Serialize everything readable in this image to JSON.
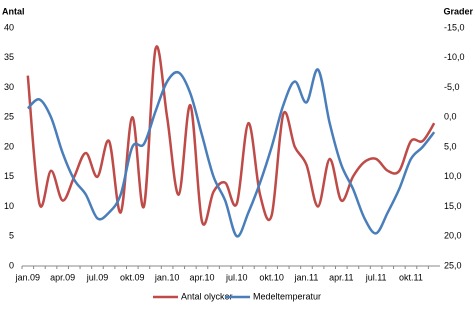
{
  "chart_data": {
    "type": "line",
    "y_label": "Antal",
    "y2_label": "Grader",
    "categories": [
      "jan.09",
      null,
      null,
      "apr.09",
      null,
      null,
      "jul.09",
      null,
      null,
      "okt.09",
      null,
      null,
      "jan.10",
      null,
      null,
      "apr.10",
      null,
      null,
      "jul.10",
      null,
      null,
      "okt.10",
      null,
      null,
      "jan.11",
      null,
      null,
      "apr.11",
      null,
      null,
      "jul.11",
      null,
      null,
      "okt.11",
      null,
      null
    ],
    "series": [
      {
        "name": "Antal olyckor",
        "color": "#be4b48",
        "values": [
          32,
          10.5,
          16,
          11,
          15,
          19,
          15,
          21,
          9,
          25,
          10,
          36.5,
          25,
          12,
          27,
          7.5,
          12.5,
          14,
          10.5,
          24,
          12,
          8.5,
          25.5,
          20,
          17,
          10,
          18,
          11,
          15,
          17.5,
          18,
          16,
          16,
          21,
          21,
          24
        ]
      },
      {
        "name": "Medeltemperatur",
        "color": "#4a7ebb",
        "axis": "y2",
        "values": [
          -1.5,
          -3,
          0,
          6,
          10.5,
          13,
          17,
          16,
          13,
          5,
          4.5,
          -1,
          -6,
          -7.5,
          -4,
          3,
          10,
          14,
          20,
          16,
          11,
          5,
          -2,
          -6,
          -2.5,
          -8,
          1,
          8,
          12,
          17,
          19.5,
          16,
          12,
          7,
          5,
          2.5
        ]
      }
    ],
    "ylim": [
      0,
      40
    ],
    "yticks": [
      0,
      5,
      10,
      15,
      20,
      25,
      30,
      35,
      40
    ],
    "y2lim": [
      25,
      -15
    ],
    "y2ticks": [
      {
        "value": -15,
        "label": "-15,0"
      },
      {
        "value": -10,
        "label": "-10,0"
      },
      {
        "value": -5,
        "label": "-5,0"
      },
      {
        "value": 0,
        "label": "0,0"
      },
      {
        "value": 5,
        "label": "5,0"
      },
      {
        "value": 10,
        "label": "10,0"
      },
      {
        "value": 15,
        "label": "15,0"
      },
      {
        "value": 20,
        "label": "20,0"
      },
      {
        "value": 25,
        "label": "25,0"
      }
    ],
    "legend": "bottom"
  }
}
